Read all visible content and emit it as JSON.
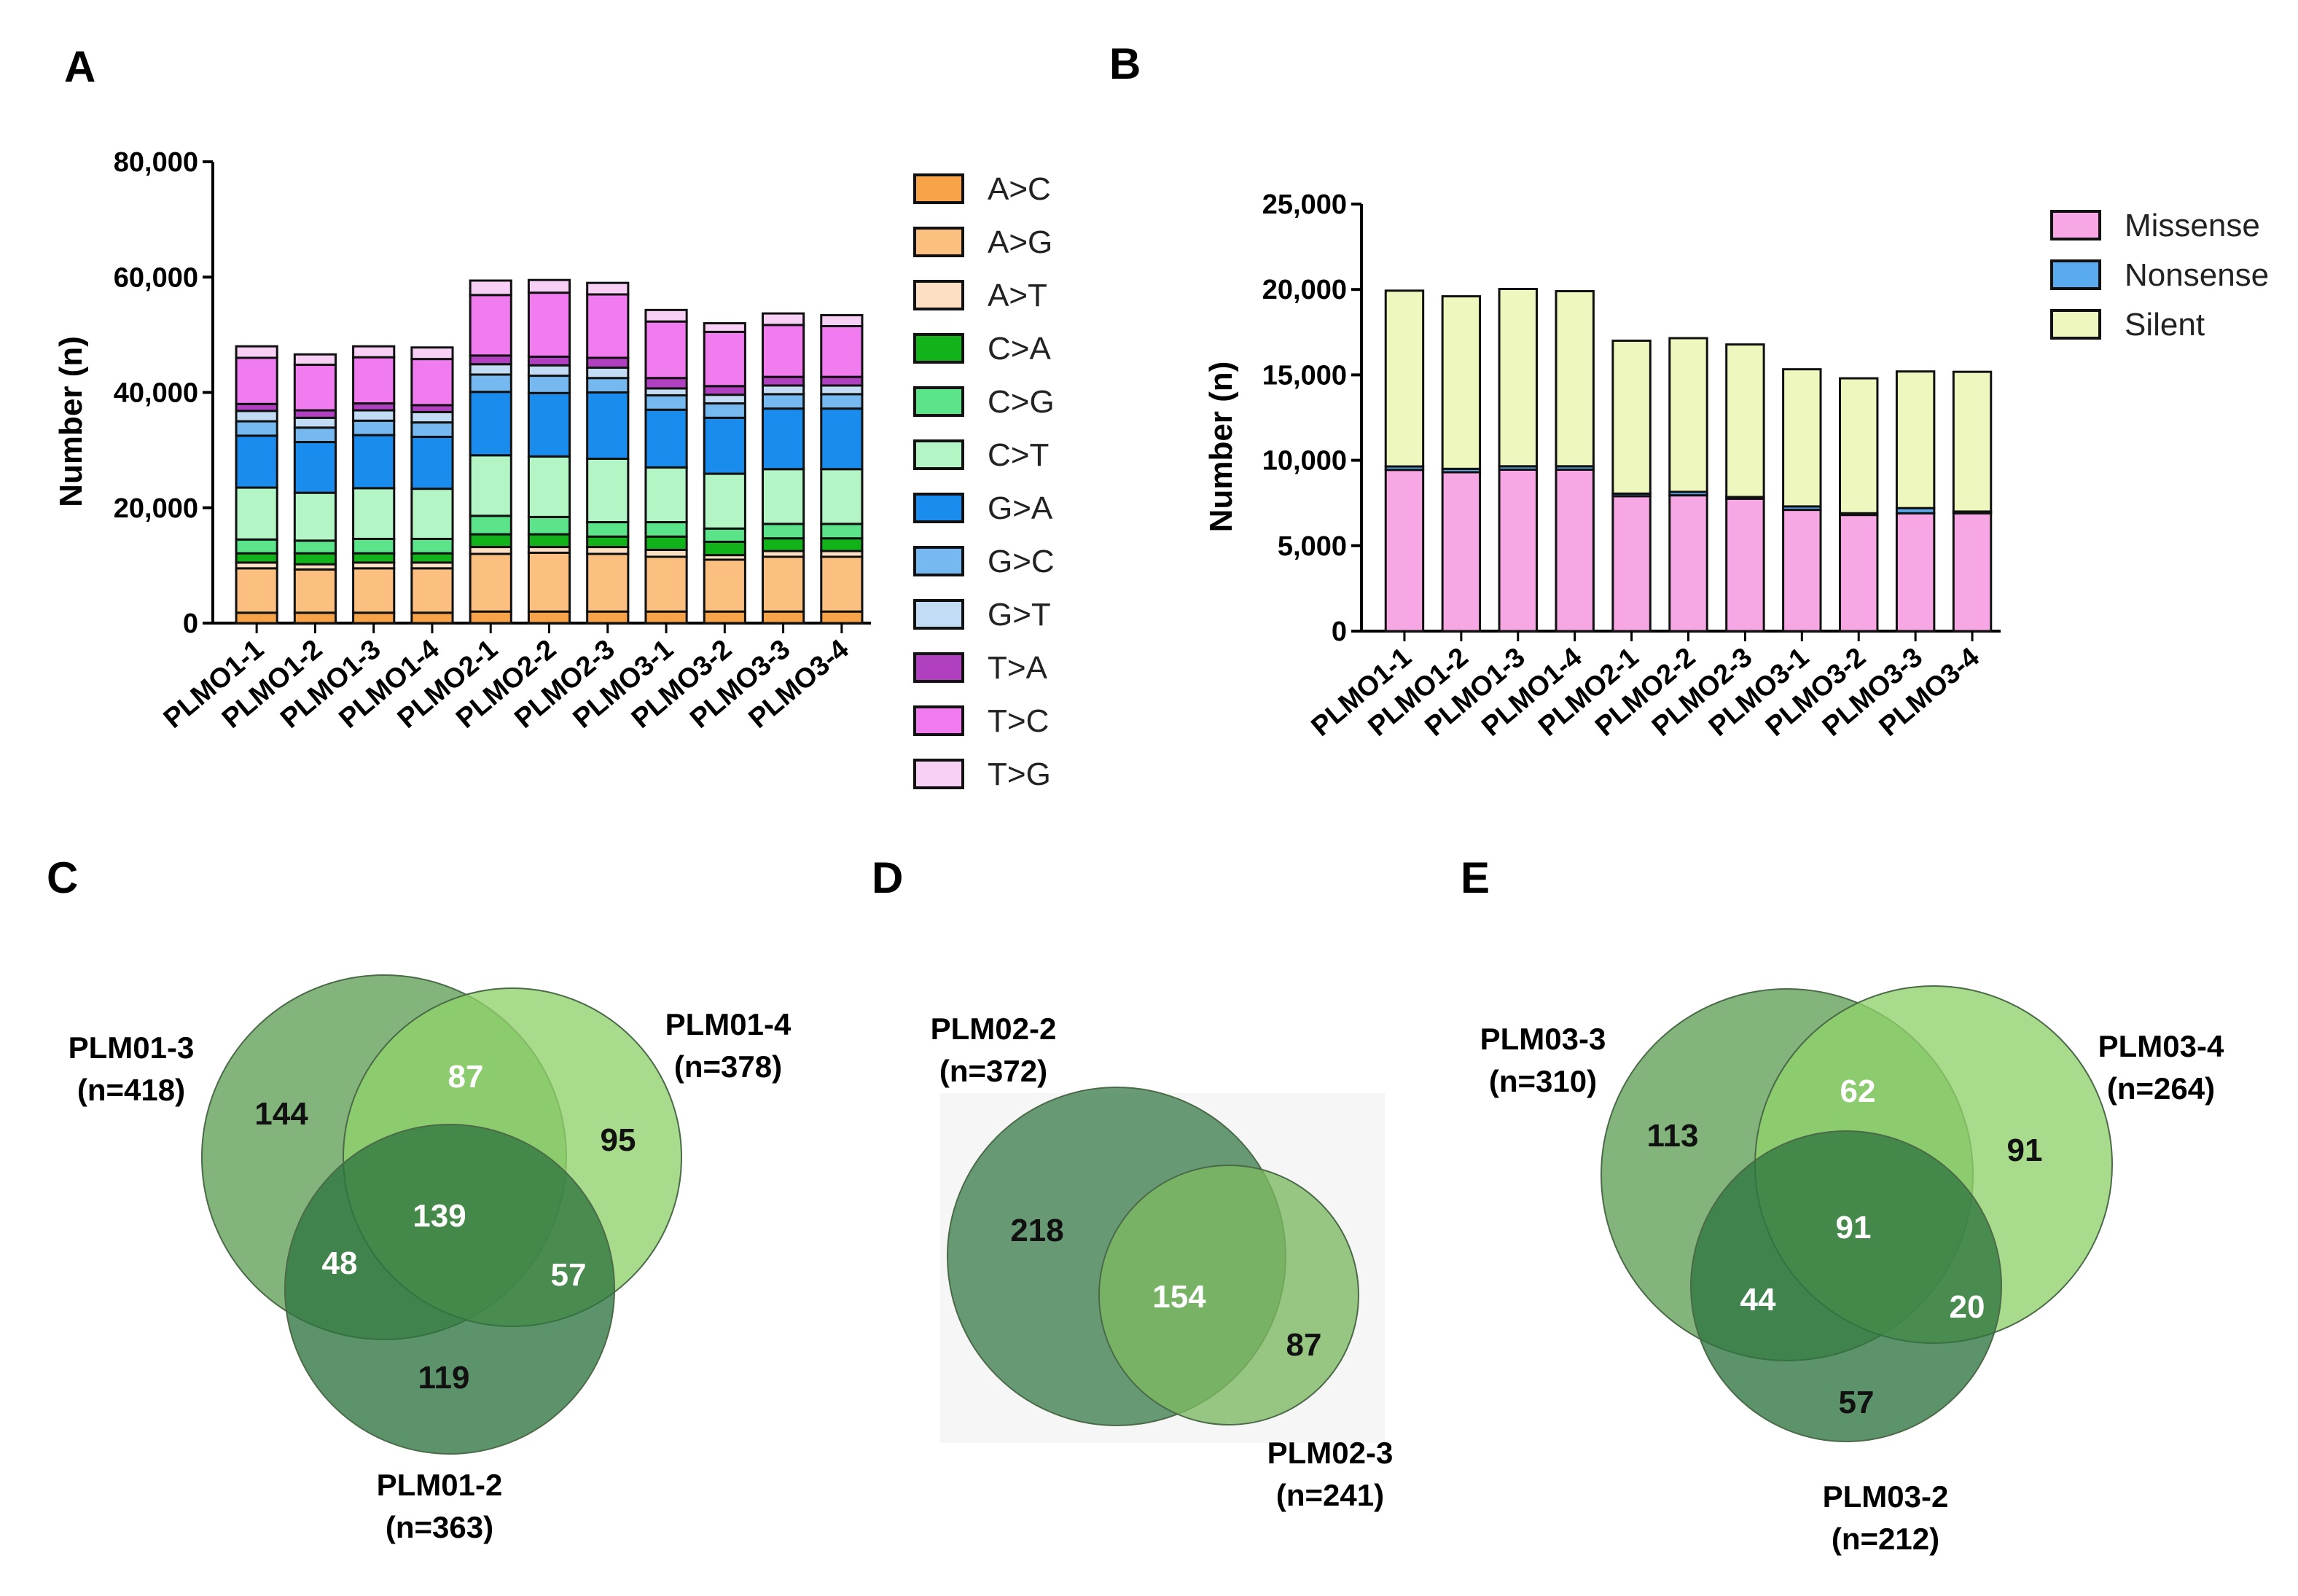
{
  "panels": {
    "A": "A",
    "B": "B",
    "C": "C",
    "D": "D",
    "E": "E"
  },
  "chart_data": [
    {
      "type": "bar",
      "stacked": true,
      "panel": "A",
      "title": "",
      "xlabel": "",
      "ylabel": "Number (n)",
      "ylim": [
        0,
        80000
      ],
      "yticks": [
        0,
        20000,
        40000,
        60000,
        80000
      ],
      "ytick_labels": [
        "0",
        "20,000",
        "40,000",
        "60,000",
        "80,000"
      ],
      "legend_position": "right",
      "categories": [
        "PLMO1-1",
        "PLMO1-2",
        "PLMO1-3",
        "PLMO1-4",
        "PLMO2-1",
        "PLMO2-2",
        "PLMO2-3",
        "PLMO3-1",
        "PLMO3-2",
        "PLMO3-3",
        "PLMO3-4"
      ],
      "series": [
        {
          "name": "A>C",
          "color": "#f7a34a",
          "values": [
            1800,
            1800,
            1800,
            1800,
            2000,
            2000,
            2000,
            2000,
            2000,
            2000,
            2000
          ]
        },
        {
          "name": "A>G",
          "color": "#fbbf80",
          "values": [
            7700,
            7500,
            7700,
            7700,
            10000,
            10200,
            10000,
            9500,
            9000,
            9500,
            9500
          ]
        },
        {
          "name": "A>T",
          "color": "#fde0c3",
          "values": [
            1000,
            900,
            1000,
            1000,
            1200,
            1000,
            1200,
            1200,
            800,
            1000,
            1000
          ]
        },
        {
          "name": "C>A",
          "color": "#11b21a",
          "values": [
            1600,
            1900,
            1600,
            1600,
            2200,
            2200,
            1800,
            2300,
            2300,
            2200,
            2200
          ]
        },
        {
          "name": "C>G",
          "color": "#5ce48a",
          "values": [
            2400,
            2200,
            2500,
            2500,
            3200,
            3000,
            2500,
            2500,
            2300,
            2500,
            2500
          ]
        },
        {
          "name": "C>T",
          "color": "#b4f5c6",
          "values": [
            9000,
            8300,
            8800,
            8700,
            10500,
            10500,
            11000,
            9500,
            9500,
            9500,
            9500
          ]
        },
        {
          "name": "G>A",
          "color": "#1a8ced",
          "values": [
            9000,
            8800,
            9200,
            9000,
            11000,
            11000,
            11500,
            10000,
            9700,
            10500,
            10500
          ]
        },
        {
          "name": "G>C",
          "color": "#76b9f0",
          "values": [
            2500,
            2500,
            2500,
            2500,
            3000,
            3000,
            2500,
            2500,
            2500,
            2500,
            2500
          ]
        },
        {
          "name": "G>T",
          "color": "#c1dcf4",
          "values": [
            1800,
            1700,
            1800,
            1800,
            1800,
            1800,
            1800,
            1200,
            1500,
            1500,
            1500
          ]
        },
        {
          "name": "T>A",
          "color": "#b040c0",
          "values": [
            1200,
            1300,
            1200,
            1200,
            1500,
            1500,
            1700,
            1800,
            1500,
            1500,
            1500
          ]
        },
        {
          "name": "T>C",
          "color": "#f07cf0",
          "values": [
            8000,
            7900,
            8000,
            8000,
            10500,
            11100,
            11000,
            9800,
            9400,
            9000,
            8800
          ]
        },
        {
          "name": "T>G",
          "color": "#f8cff5",
          "values": [
            2000,
            1800,
            1900,
            2000,
            2500,
            2200,
            2000,
            2000,
            1500,
            2000,
            1900
          ]
        }
      ]
    },
    {
      "type": "bar",
      "stacked": true,
      "panel": "B",
      "title": "",
      "xlabel": "",
      "ylabel": "Number (n)",
      "ylim": [
        0,
        25000
      ],
      "yticks": [
        0,
        5000,
        10000,
        15000,
        20000,
        25000
      ],
      "ytick_labels": [
        "0",
        "5,000",
        "10,000",
        "15,000",
        "20,000",
        "25,000"
      ],
      "legend_position": "top-right",
      "categories": [
        "PLMO1-1",
        "PLMO1-2",
        "PLMO1-3",
        "PLMO1-4",
        "PLMO2-1",
        "PLMO2-2",
        "PLMO2-3",
        "PLMO3-1",
        "PLMO3-2",
        "PLMO3-3",
        "PLMO3-4"
      ],
      "series": [
        {
          "name": "Missense",
          "color": "#f7a8e4",
          "values": [
            9440,
            9300,
            9450,
            9450,
            7900,
            7950,
            7750,
            7100,
            6800,
            6900,
            6900
          ]
        },
        {
          "name": "Nonsense",
          "color": "#5aaaf0",
          "values": [
            200,
            200,
            200,
            200,
            150,
            200,
            100,
            200,
            100,
            300,
            100
          ]
        },
        {
          "name": "Silent",
          "color": "#eef7bd",
          "values": [
            10290,
            10100,
            10380,
            10250,
            8950,
            9000,
            8930,
            8030,
            7900,
            8000,
            8180
          ]
        }
      ]
    }
  ],
  "venns": [
    {
      "panel": "C",
      "sets": [
        {
          "name": "PLM01-3",
          "n": "(n=418)",
          "color": "#5f9f56"
        },
        {
          "name": "PLM01-4",
          "n": "(n=378)",
          "color": "#8fd16a"
        },
        {
          "name": "PLM01-2",
          "n": "(n=363)",
          "color": "#2f7440"
        }
      ],
      "regions": [
        {
          "sets": [
            "PLM01-3"
          ],
          "value": "144",
          "white": false
        },
        {
          "sets": [
            "PLM01-3",
            "PLM01-4"
          ],
          "value": "87",
          "white": true
        },
        {
          "sets": [
            "PLM01-4"
          ],
          "value": "95",
          "white": false
        },
        {
          "sets": [
            "PLM01-3",
            "PLM01-4",
            "PLM01-2"
          ],
          "value": "139",
          "white": true
        },
        {
          "sets": [
            "PLM01-3",
            "PLM01-2"
          ],
          "value": "48",
          "white": true
        },
        {
          "sets": [
            "PLM01-4",
            "PLM01-2"
          ],
          "value": "57",
          "white": true
        },
        {
          "sets": [
            "PLM01-2"
          ],
          "value": "119",
          "white": false
        }
      ]
    },
    {
      "panel": "D",
      "sets": [
        {
          "name": "PLM02-2",
          "n": "(n=372)",
          "color": "#3f8050"
        },
        {
          "name": "PLM02-3",
          "n": "(n=241)",
          "color": "#7cb861"
        }
      ],
      "regions": [
        {
          "sets": [
            "PLM02-2"
          ],
          "value": "218",
          "white": false
        },
        {
          "sets": [
            "PLM02-2",
            "PLM02-3"
          ],
          "value": "154",
          "white": true
        },
        {
          "sets": [
            "PLM02-3"
          ],
          "value": "87",
          "white": false
        }
      ]
    },
    {
      "panel": "E",
      "sets": [
        {
          "name": "PLM03-3",
          "n": "(n=310)",
          "color": "#5f9f56"
        },
        {
          "name": "PLM03-4",
          "n": "(n=264)",
          "color": "#8fd16a"
        },
        {
          "name": "PLM03-2",
          "n": "(n=212)",
          "color": "#2f7440"
        }
      ],
      "regions": [
        {
          "sets": [
            "PLM03-3"
          ],
          "value": "113",
          "white": false
        },
        {
          "sets": [
            "PLM03-3",
            "PLM03-4"
          ],
          "value": "62",
          "white": true
        },
        {
          "sets": [
            "PLM03-4"
          ],
          "value": "91",
          "white": false
        },
        {
          "sets": [
            "PLM03-3",
            "PLM03-4",
            "PLM03-2"
          ],
          "value": "91",
          "white": true
        },
        {
          "sets": [
            "PLM03-3",
            "PLM03-2"
          ],
          "value": "44",
          "white": true
        },
        {
          "sets": [
            "PLM03-4",
            "PLM03-2"
          ],
          "value": "20",
          "white": true
        },
        {
          "sets": [
            "PLM03-2"
          ],
          "value": "57",
          "white": false
        }
      ]
    }
  ]
}
